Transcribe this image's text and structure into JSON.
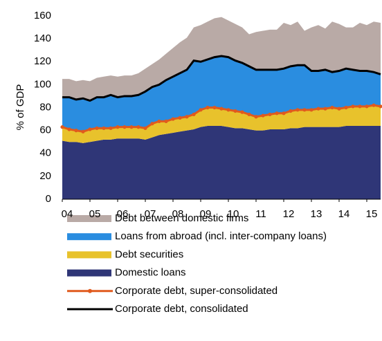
{
  "chart_data": {
    "type": "area",
    "y_label": "% of GDP",
    "categories": [
      "04",
      null,
      null,
      null,
      "05",
      null,
      null,
      null,
      "06",
      null,
      null,
      null,
      "07",
      null,
      null,
      null,
      "08",
      null,
      null,
      null,
      "09",
      null,
      null,
      null,
      "10",
      null,
      null,
      null,
      "11",
      null,
      null,
      null,
      "12",
      null,
      null,
      null,
      "13",
      null,
      null,
      null,
      "14",
      null,
      null,
      null,
      "15",
      null,
      null
    ],
    "ylim": [
      0,
      160
    ],
    "yticks": [
      0,
      20,
      40,
      60,
      80,
      100,
      120,
      140,
      160
    ],
    "series": [
      {
        "name": "Debt between domestic firms",
        "type": "area",
        "color": "#b9aaa6",
        "values": [
          16,
          16,
          16,
          16,
          17,
          17,
          18,
          17,
          18,
          18,
          18,
          19,
          20,
          20,
          22,
          23,
          25,
          27,
          28,
          29,
          32,
          33,
          34,
          34,
          32,
          32,
          31,
          28,
          33,
          34,
          35,
          35,
          40,
          36,
          38,
          30,
          38,
          40,
          36,
          44,
          41,
          36,
          37,
          42,
          40,
          44,
          45
        ]
      },
      {
        "name": "Loans from abroad (incl. inter-company loans)",
        "type": "area",
        "color": "#2a8de0",
        "values": [
          26,
          28,
          27,
          29,
          25,
          27,
          27,
          29,
          26,
          27,
          27,
          28,
          32,
          32,
          32,
          36,
          37,
          39,
          41,
          47,
          42,
          42,
          44,
          46,
          46,
          44,
          43,
          42,
          41,
          40,
          39,
          38,
          39,
          39,
          39,
          39,
          34,
          33,
          34,
          31,
          33,
          34,
          32,
          31,
          31,
          29,
          28
        ]
      },
      {
        "name": "Debt securities",
        "type": "area",
        "color": "#e8c22c",
        "values": [
          12,
          11,
          10,
          10,
          11,
          11,
          10,
          10,
          10,
          10,
          10,
          10,
          10,
          12,
          12,
          11,
          12,
          12,
          12,
          13,
          15,
          16,
          16,
          15,
          15,
          15,
          14,
          13,
          12,
          13,
          13,
          14,
          14,
          15,
          16,
          15,
          15,
          16,
          16,
          17,
          16,
          16,
          17,
          17,
          17,
          18,
          17
        ]
      },
      {
        "name": "Domestic loans",
        "type": "area",
        "color": "#2f3677",
        "values": [
          51,
          50,
          50,
          49,
          50,
          51,
          52,
          52,
          53,
          53,
          53,
          53,
          52,
          54,
          56,
          57,
          58,
          59,
          60,
          61,
          63,
          64,
          64,
          64,
          63,
          62,
          62,
          61,
          60,
          60,
          61,
          61,
          61,
          62,
          62,
          63,
          63,
          63,
          63,
          63,
          63,
          64,
          64,
          64,
          64,
          64,
          64
        ]
      },
      {
        "name": "Corporate debt, super-consolidated",
        "type": "line",
        "color": "#e05a1e",
        "markers": true,
        "values": [
          63,
          61,
          60,
          59,
          61,
          62,
          62,
          62,
          63,
          63,
          63,
          63,
          62,
          66,
          68,
          68,
          70,
          71,
          72,
          74,
          78,
          80,
          80,
          79,
          78,
          77,
          76,
          74,
          72,
          73,
          74,
          75,
          75,
          77,
          78,
          78,
          78,
          79,
          79,
          80,
          79,
          80,
          81,
          81,
          81,
          82,
          81
        ]
      },
      {
        "name": "Corporate debt, consolidated",
        "type": "line",
        "color": "#000000",
        "markers": false,
        "values": [
          89,
          89,
          87,
          88,
          86,
          89,
          89,
          91,
          89,
          90,
          90,
          91,
          94,
          98,
          100,
          104,
          107,
          110,
          113,
          121,
          120,
          122,
          124,
          125,
          124,
          121,
          119,
          116,
          113,
          113,
          113,
          113,
          114,
          116,
          117,
          117,
          112,
          112,
          113,
          111,
          112,
          114,
          113,
          112,
          112,
          111,
          109
        ]
      }
    ]
  }
}
